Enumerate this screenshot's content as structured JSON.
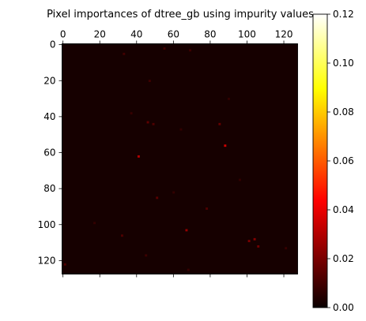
{
  "chart_data": {
    "type": "heatmap",
    "title": "Pixel importances of dtree_gb using impurity values",
    "xlabel": "",
    "ylabel": "",
    "grid": false,
    "colormap": "hot",
    "x_ticks": [
      0,
      20,
      40,
      60,
      80,
      100,
      120
    ],
    "y_ticks": [
      0,
      20,
      40,
      60,
      80,
      100,
      120
    ],
    "x_axis_position": "top",
    "xlim": [
      -0.5,
      127.5
    ],
    "ylim": [
      127.5,
      -0.5
    ],
    "grid_size": [
      128,
      128
    ],
    "background_value": 0.002,
    "colorbar": {
      "min": 0.0,
      "max": 0.12,
      "ticks": [
        0.0,
        0.02,
        0.04,
        0.06,
        0.08,
        0.1,
        0.12
      ],
      "tick_labels": [
        "0.00",
        "0.02",
        "0.04",
        "0.06",
        "0.08",
        "0.10",
        "0.12"
      ]
    },
    "hotspots": [
      {
        "row": 56,
        "col": 88,
        "value": 0.035
      },
      {
        "row": 62,
        "col": 41,
        "value": 0.03
      },
      {
        "row": 103,
        "col": 67,
        "value": 0.025
      },
      {
        "row": 108,
        "col": 104,
        "value": 0.022
      },
      {
        "row": 109,
        "col": 101,
        "value": 0.02
      },
      {
        "row": 112,
        "col": 106,
        "value": 0.018
      },
      {
        "row": 44,
        "col": 85,
        "value": 0.016
      },
      {
        "row": 43,
        "col": 46,
        "value": 0.015
      },
      {
        "row": 44,
        "col": 49,
        "value": 0.012
      },
      {
        "row": 85,
        "col": 51,
        "value": 0.014
      },
      {
        "row": 106,
        "col": 32,
        "value": 0.012
      },
      {
        "row": 91,
        "col": 78,
        "value": 0.012
      },
      {
        "row": 5,
        "col": 33,
        "value": 0.01
      },
      {
        "row": 2,
        "col": 55,
        "value": 0.01
      },
      {
        "row": 3,
        "col": 69,
        "value": 0.009
      },
      {
        "row": 20,
        "col": 47,
        "value": 0.009
      },
      {
        "row": 38,
        "col": 37,
        "value": 0.008
      },
      {
        "row": 117,
        "col": 45,
        "value": 0.009
      },
      {
        "row": 122,
        "col": 1,
        "value": 0.012
      },
      {
        "row": 125,
        "col": 68,
        "value": 0.008
      },
      {
        "row": 113,
        "col": 121,
        "value": 0.008
      },
      {
        "row": 82,
        "col": 60,
        "value": 0.007
      },
      {
        "row": 47,
        "col": 64,
        "value": 0.007
      },
      {
        "row": 75,
        "col": 96,
        "value": 0.007
      },
      {
        "row": 30,
        "col": 90,
        "value": 0.007
      },
      {
        "row": 99,
        "col": 17,
        "value": 0.007
      }
    ]
  }
}
